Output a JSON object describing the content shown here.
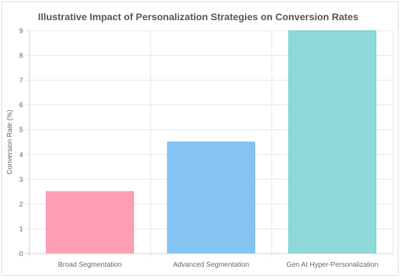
{
  "chart_data": {
    "type": "bar",
    "title": "Illustrative Impact of Personalization Strategies on Conversion Rates",
    "xlabel": "",
    "ylabel": "Conversion Rate (%)",
    "categories": [
      "Broad Segmentation",
      "Advanced Segmentation",
      "Gen AI Hyper-Personalization"
    ],
    "values": [
      2.5,
      4.5,
      9
    ],
    "ylim": [
      0,
      9
    ],
    "yticks": [
      0,
      1,
      2,
      3,
      4,
      5,
      6,
      7,
      8,
      9
    ],
    "grid": true,
    "legend": "none",
    "colors": {
      "fills": [
        "#ff9fb3",
        "#85c3f2",
        "#8fd9d9"
      ],
      "strokes": [
        "#ff7f9b",
        "#5fb0ec",
        "#6ccccc"
      ],
      "grid": "#e5e5e5",
      "axis": "#cccccc"
    }
  }
}
